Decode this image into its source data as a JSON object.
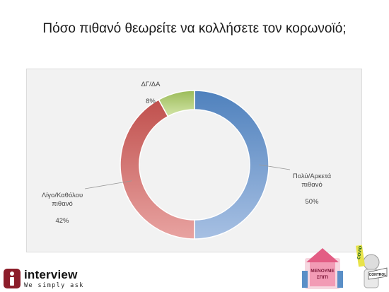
{
  "page": {
    "title": "Πόσο πιθανό θεωρείτε να κολλήσετε τον κορωνοϊό;"
  },
  "chart_data": {
    "type": "pie",
    "style": "doughnut",
    "title": "",
    "start": "top",
    "direction": "clockwise",
    "slices": [
      {
        "label": "Πολύ/Αρκετά\nπιθανό",
        "value": 50,
        "value_label": "50%",
        "color": "#4f81bd",
        "color_light": "#a7c0e3"
      },
      {
        "label": "Λίγο/Καθόλου\nπιθανό",
        "value": 42,
        "value_label": "42%",
        "color": "#c0504d",
        "color_light": "#e8a3a1"
      },
      {
        "label": "ΔΓ/ΔΑ",
        "value": 8,
        "value_label": "8%",
        "color": "#9bbb59",
        "color_light": "#d3e5a8"
      }
    ]
  },
  "logo": {
    "name": "interview",
    "tagline": "We simply ask",
    "color": "#8c1d2a"
  },
  "badges": {
    "left_badge_text": "ΜΕΝΟΥΜΕ\nΣΠΙΤΙ",
    "right_badge_text": "COVID\nCONTROL"
  }
}
